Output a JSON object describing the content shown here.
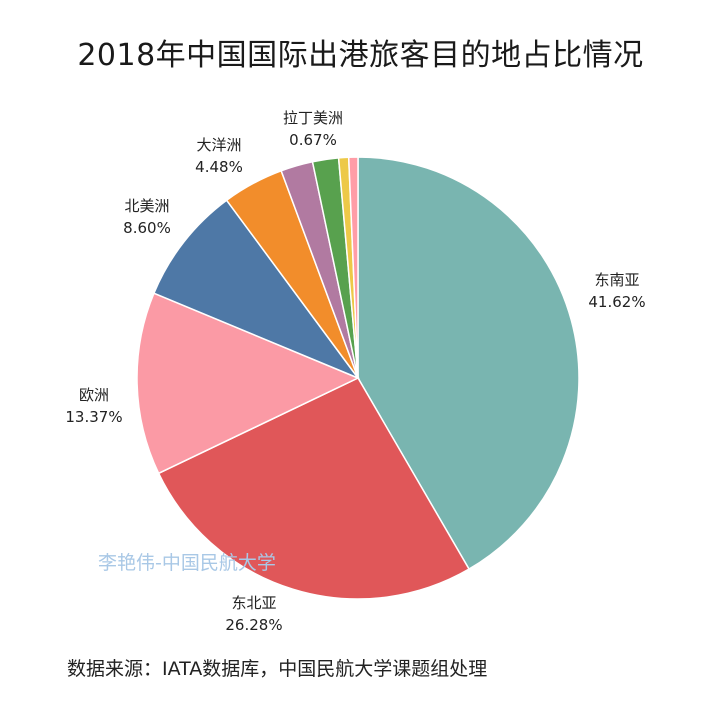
{
  "title": "2018年中国国际出港旅客目的地占比情况",
  "watermark": "李艳伟-中国民航大学",
  "source": "数据来源：IATA数据库，中国民航大学课题组处理",
  "chart_data": {
    "type": "pie",
    "title": "2018年中国国际出港旅客目的地占比情况",
    "start": "12 o'clock, clockwise",
    "slices": [
      {
        "label": "东南亚",
        "value": 41.62,
        "value_label": "41.62%",
        "color": "#79b5b0",
        "labeled": true
      },
      {
        "label": "东北亚",
        "value": 26.28,
        "value_label": "26.28%",
        "color": "#e05759",
        "labeled": true
      },
      {
        "label": "欧洲",
        "value": 13.37,
        "value_label": "13.37%",
        "color": "#fb9aa5",
        "labeled": true
      },
      {
        "label": "北美洲",
        "value": 8.6,
        "value_label": "8.60%",
        "color": "#4e78a6",
        "labeled": true
      },
      {
        "label": "大洋洲",
        "value": 4.48,
        "value_label": "4.48%",
        "color": "#f28d2b",
        "labeled": true
      },
      {
        "label": "",
        "value": 2.35,
        "value_label": "",
        "color": "#b17aa1",
        "labeled": false
      },
      {
        "label": "",
        "value": 1.9,
        "value_label": "",
        "color": "#58a14e",
        "labeled": false
      },
      {
        "label": "",
        "value": 0.73,
        "value_label": "",
        "color": "#edc948",
        "labeled": false
      },
      {
        "label": "拉丁美洲",
        "value": 0.67,
        "value_label": "0.67%",
        "color": "#ff9da7",
        "labeled": true
      }
    ]
  }
}
